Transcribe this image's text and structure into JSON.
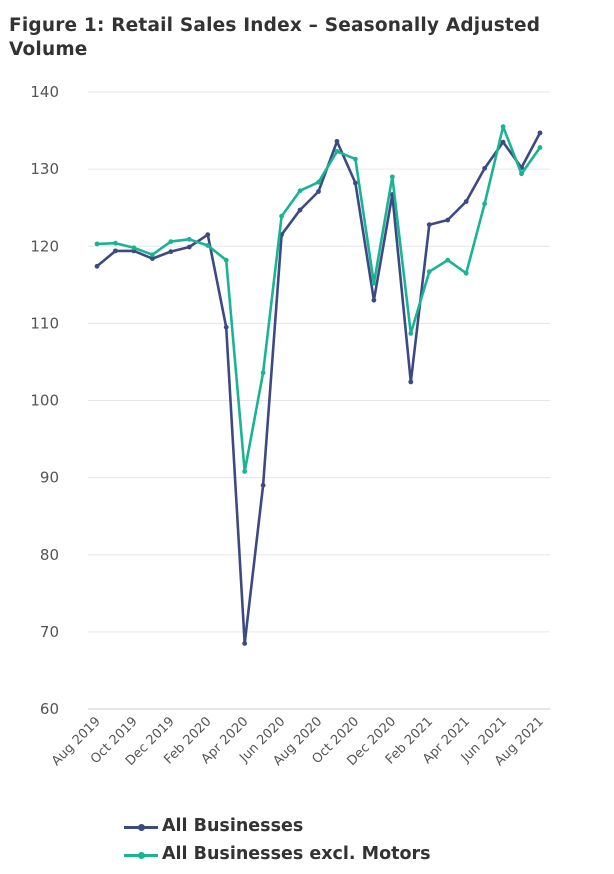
{
  "chart_data": {
    "type": "line",
    "title": "Figure 1: Retail Sales Index – Seasonally Adjusted Volume",
    "xlabel": "",
    "ylabel": "",
    "ylim": [
      60,
      140
    ],
    "yticks": [
      140,
      130,
      120,
      110,
      100,
      90,
      80,
      70,
      60
    ],
    "grid": true,
    "legend_position": "bottom",
    "categories": [
      "Aug 2019",
      "Sep 2019",
      "Oct 2019",
      "Nov 2019",
      "Dec 2019",
      "Jan 2020",
      "Feb 2020",
      "Mar 2020",
      "Apr 2020",
      "May 2020",
      "Jun 2020",
      "Jul 2020",
      "Aug 2020",
      "Sep 2020",
      "Oct 2020",
      "Nov 2020",
      "Dec 2020",
      "Jan 2021",
      "Feb 2021",
      "Mar 2021",
      "Apr 2021",
      "May 2021",
      "Jun 2021",
      "Jul 2021",
      "Aug 2021"
    ],
    "xtick_labels": [
      "Aug 2019",
      "Oct 2019",
      "Dec 2019",
      "Feb 2020",
      "Apr 2020",
      "Jun 2020",
      "Aug 2020",
      "Oct 2020",
      "Dec 2020",
      "Feb 2021",
      "Apr 2021",
      "Jun 2021",
      "Aug 2021"
    ],
    "series": [
      {
        "name": "All Businesses",
        "color": "#3d4a82",
        "values": [
          117.4,
          119.4,
          119.4,
          118.4,
          119.3,
          119.9,
          121.5,
          109.5,
          68.5,
          89.0,
          121.5,
          124.7,
          127.1,
          133.6,
          128.2,
          113.0,
          126.7,
          102.4,
          122.8,
          123.4,
          125.8,
          130.1,
          133.5,
          130.2,
          134.7
        ]
      },
      {
        "name": "All Businesses excl. Motors",
        "color": "#1ab394",
        "values": [
          120.3,
          120.4,
          119.8,
          118.9,
          120.6,
          120.9,
          120.1,
          118.2,
          90.8,
          103.6,
          123.9,
          127.2,
          128.3,
          132.3,
          131.3,
          115.2,
          129.0,
          108.7,
          116.7,
          118.2,
          116.5,
          125.5,
          135.5,
          129.4,
          132.8
        ]
      }
    ]
  }
}
